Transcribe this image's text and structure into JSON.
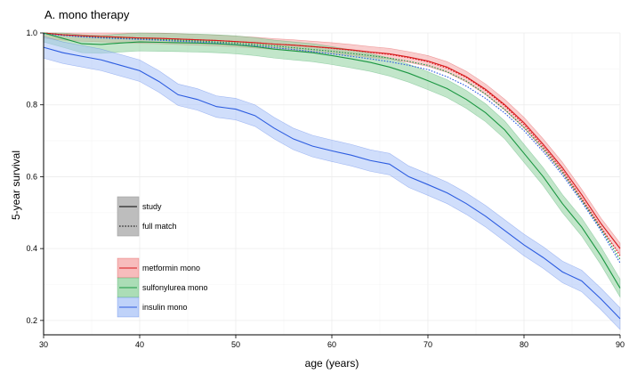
{
  "chart_data": {
    "type": "line",
    "title": "A. mono therapy",
    "xlabel": "age (years)",
    "ylabel": "5-year survival",
    "xlim": [
      30,
      90
    ],
    "ylim": [
      0.16,
      1.0
    ],
    "x_ticks": [
      30,
      40,
      50,
      60,
      70,
      80,
      90
    ],
    "y_ticks": [
      0.2,
      0.4,
      0.6,
      0.8,
      1.0
    ],
    "x_tick_labels": [
      "30",
      "40",
      "50",
      "60",
      "70",
      "80",
      "90"
    ],
    "y_tick_labels": [
      "0.2",
      "0.4",
      "0.6",
      "0.8",
      "1.0"
    ],
    "grid": true,
    "legend_position": "left-center",
    "linetype_legend": [
      {
        "label": "study",
        "dash": "solid"
      },
      {
        "label": "full match",
        "dash": "dotted"
      }
    ],
    "colors": {
      "metformin": "#d7191c",
      "sulfonylurea": "#1a9641",
      "insulin": "#2c5ce0",
      "metformin_band": "#f4a6a6",
      "sulfonylurea_band": "#8fd19e",
      "insulin_band": "#a9c3f7"
    },
    "x": [
      30,
      32,
      34,
      36,
      38,
      40,
      42,
      44,
      46,
      48,
      50,
      52,
      54,
      56,
      58,
      60,
      62,
      64,
      66,
      68,
      70,
      72,
      74,
      76,
      78,
      80,
      82,
      84,
      86,
      88,
      90
    ],
    "series": [
      {
        "name": "metformin mono",
        "key": "metformin",
        "linetype": "study",
        "values": [
          1.0,
          0.995,
          0.992,
          0.99,
          0.988,
          0.986,
          0.985,
          0.983,
          0.981,
          0.979,
          0.976,
          0.973,
          0.969,
          0.966,
          0.962,
          0.958,
          0.953,
          0.947,
          0.942,
          0.933,
          0.922,
          0.905,
          0.878,
          0.843,
          0.8,
          0.75,
          0.69,
          0.625,
          0.55,
          0.47,
          0.4
        ],
        "band": 0.015
      },
      {
        "name": "metformin mono",
        "key": "metformin",
        "linetype": "full match",
        "values": [
          1.0,
          0.995,
          0.992,
          0.99,
          0.988,
          0.986,
          0.985,
          0.983,
          0.981,
          0.979,
          0.976,
          0.973,
          0.969,
          0.966,
          0.962,
          0.957,
          0.952,
          0.946,
          0.94,
          0.931,
          0.92,
          0.902,
          0.876,
          0.84,
          0.797,
          0.745,
          0.684,
          0.618,
          0.54,
          0.46,
          0.38
        ],
        "band": 0
      },
      {
        "name": "sulfonylurea mono",
        "key": "sulfonylurea",
        "linetype": "study",
        "values": [
          1.0,
          0.985,
          0.97,
          0.968,
          0.972,
          0.975,
          0.974,
          0.973,
          0.972,
          0.97,
          0.967,
          0.962,
          0.955,
          0.95,
          0.945,
          0.937,
          0.928,
          0.918,
          0.905,
          0.888,
          0.867,
          0.845,
          0.815,
          0.778,
          0.73,
          0.665,
          0.6,
          0.525,
          0.46,
          0.38,
          0.29
        ],
        "band": 0.025
      },
      {
        "name": "sulfonylurea mono",
        "key": "sulfonylurea",
        "linetype": "full match",
        "values": [
          1.0,
          0.995,
          0.991,
          0.988,
          0.986,
          0.984,
          0.982,
          0.98,
          0.978,
          0.975,
          0.972,
          0.968,
          0.964,
          0.959,
          0.954,
          0.949,
          0.943,
          0.937,
          0.93,
          0.921,
          0.91,
          0.892,
          0.866,
          0.83,
          0.787,
          0.737,
          0.678,
          0.612,
          0.535,
          0.455,
          0.37
        ],
        "band": 0
      },
      {
        "name": "insulin mono",
        "key": "insulin",
        "linetype": "study",
        "values": [
          0.96,
          0.945,
          0.935,
          0.925,
          0.91,
          0.895,
          0.865,
          0.828,
          0.815,
          0.795,
          0.788,
          0.77,
          0.735,
          0.705,
          0.685,
          0.672,
          0.66,
          0.645,
          0.635,
          0.6,
          0.578,
          0.555,
          0.525,
          0.49,
          0.45,
          0.41,
          0.375,
          0.335,
          0.31,
          0.26,
          0.205
        ],
        "band": 0.03
      },
      {
        "name": "insulin mono",
        "key": "insulin",
        "linetype": "full match",
        "values": [
          0.998,
          0.993,
          0.989,
          0.986,
          0.984,
          0.982,
          0.98,
          0.977,
          0.975,
          0.972,
          0.968,
          0.964,
          0.959,
          0.954,
          0.948,
          0.942,
          0.935,
          0.928,
          0.92,
          0.91,
          0.898,
          0.878,
          0.852,
          0.818,
          0.777,
          0.728,
          0.67,
          0.605,
          0.53,
          0.45,
          0.36
        ],
        "band": 0
      }
    ]
  }
}
